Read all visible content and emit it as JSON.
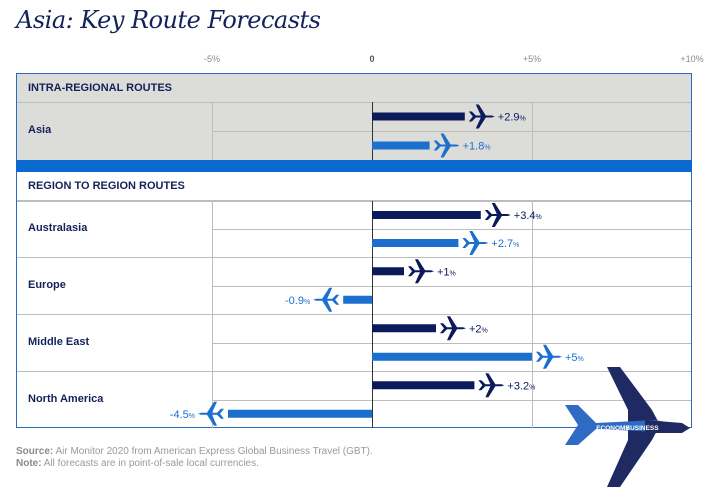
{
  "title": "Asia: Key Route Forecasts",
  "colors": {
    "business": "#0b1a5a",
    "economy": "#1a6fcf",
    "band": "#0a6ad0",
    "intra_bg": "#dcdcd9"
  },
  "sections": {
    "intra": "INTRA-REGIONAL ROUTES",
    "region": "REGION TO REGION ROUTES"
  },
  "legend": {
    "economy": "ECONOMY",
    "business": "BUSINESS"
  },
  "footer": {
    "source_label": "Source:",
    "source_text": " Air Monitor 2020 from American Express Global Business Travel (GBT).",
    "note_label": "Note:",
    "note_text": " All forecasts are in point-of-sale local currencies."
  },
  "chart_data": {
    "type": "bar",
    "orientation": "horizontal",
    "title": "Asia: Key Route Forecasts",
    "xlim": [
      -5,
      10
    ],
    "xticks": [
      {
        "value": -5,
        "label": "-5%"
      },
      {
        "value": 0,
        "label": "0"
      },
      {
        "value": 5,
        "label": "+5%"
      },
      {
        "value": 10,
        "label": "+10%"
      }
    ],
    "categories": [
      "Asia",
      "Australasia",
      "Europe",
      "Middle East",
      "North America"
    ],
    "groups": [
      "INTRA-REGIONAL ROUTES",
      "REGION TO REGION ROUTES",
      "REGION TO REGION ROUTES",
      "REGION TO REGION ROUTES",
      "REGION TO REGION ROUTES"
    ],
    "series": [
      {
        "name": "Business",
        "values": [
          2.9,
          3.4,
          1,
          2,
          3.2
        ],
        "labels": [
          "+2.9",
          "+3.4",
          "+1",
          "+2",
          "+3.2"
        ]
      },
      {
        "name": "Economy",
        "values": [
          1.8,
          2.7,
          -0.9,
          5,
          -4.5
        ],
        "labels": [
          "+1.8",
          "+2.7",
          "-0.9",
          "+5",
          "-4.5"
        ]
      }
    ],
    "unit": "%"
  }
}
